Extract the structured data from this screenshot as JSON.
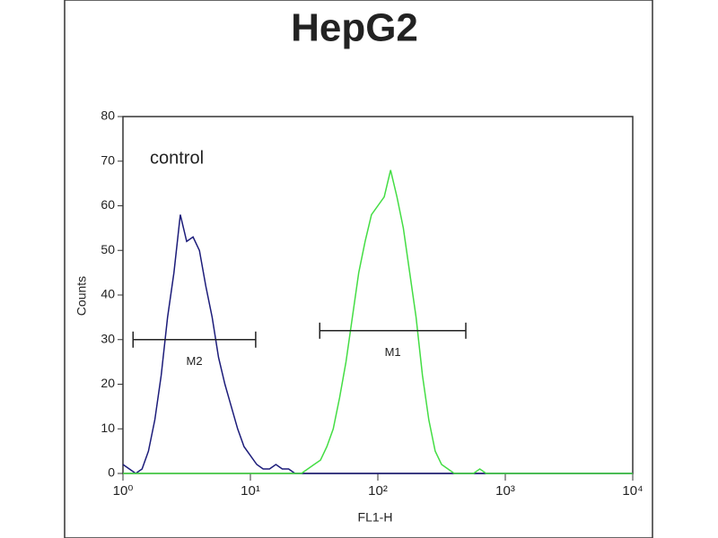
{
  "chart_data": {
    "type": "line",
    "title": "HepG2",
    "xlabel": "FL1-H",
    "ylabel": "Counts",
    "xscale": "log",
    "x": [
      1,
      1.122,
      1.259,
      1.413,
      1.585,
      1.778,
      1.995,
      2.239,
      2.512,
      2.818,
      3.162,
      3.548,
      3.981,
      4.467,
      5.012,
      5.623,
      6.31,
      7.079,
      7.943,
      8.913,
      10,
      11.22,
      12.59,
      14.13,
      15.85,
      17.78,
      19.95,
      22.39,
      25.12,
      28.18,
      31.62,
      35.48,
      39.81,
      44.67,
      50.12,
      56.23,
      63.1,
      70.79,
      79.43,
      89.13,
      100,
      112.2,
      125.9,
      141.3,
      158.5,
      177.8,
      199.5,
      223.9,
      251.2,
      281.8,
      316.2,
      354.8,
      398.1,
      446.7,
      501.2,
      562.3,
      631,
      707.9,
      794.3,
      891.3,
      1000,
      1122,
      1259,
      1413,
      1585,
      1778,
      1995,
      2239,
      2512,
      2818,
      3162,
      3548,
      3981,
      4467,
      5012,
      5623,
      6310,
      7079,
      7943,
      8913,
      10000
    ],
    "series": [
      {
        "name": "control",
        "color": "#1c1c7a",
        "values": [
          2,
          1,
          0,
          1,
          5,
          12,
          22,
          35,
          45,
          58,
          52,
          53,
          50,
          42,
          35,
          26,
          20,
          15,
          10,
          6,
          4,
          2,
          1,
          1,
          2,
          1,
          1,
          0,
          0,
          0,
          0,
          0,
          0,
          0,
          0,
          0,
          0,
          0,
          0,
          0,
          0,
          0,
          0,
          0,
          0,
          0,
          0,
          0,
          0,
          0,
          0,
          0,
          0,
          0,
          0,
          0,
          0,
          0,
          0,
          0,
          0,
          0,
          0,
          0,
          0,
          0,
          0,
          0,
          0,
          0,
          0,
          0,
          0,
          0,
          0,
          0,
          0,
          0,
          0,
          0,
          0
        ]
      },
      {
        "color": "#44dd44",
        "values": [
          0,
          0,
          0,
          0,
          0,
          0,
          0,
          0,
          0,
          0,
          0,
          0,
          0,
          0,
          0,
          0,
          0,
          0,
          0,
          0,
          0,
          0,
          0,
          0,
          0,
          0,
          0,
          0,
          0,
          1,
          2,
          3,
          6,
          10,
          17,
          25,
          35,
          45,
          52,
          58,
          60,
          62,
          68,
          62,
          55,
          45,
          35,
          22,
          12,
          5,
          2,
          1,
          0,
          0,
          0,
          0,
          1,
          0,
          0,
          0,
          0,
          0,
          0,
          0,
          0,
          0,
          0,
          0,
          0,
          0,
          0,
          0,
          0,
          0,
          0,
          0,
          0,
          0,
          0,
          0,
          0
        ]
      }
    ],
    "annotation": "control",
    "gates": [
      {
        "label": "M2",
        "range": [
          1.2,
          11
        ],
        "y": 30
      },
      {
        "label": "M1",
        "range": [
          35,
          490
        ],
        "y": 32
      }
    ],
    "xlim": [
      1,
      10000
    ],
    "xticks": [
      {
        "value": 1,
        "label": "10⁰"
      },
      {
        "value": 10,
        "label": "10¹"
      },
      {
        "value": 100,
        "label": "10²"
      },
      {
        "value": 1000,
        "label": "10³"
      },
      {
        "value": 10000,
        "label": "10⁴"
      }
    ],
    "ylim": [
      0,
      80
    ],
    "yticks": [
      0,
      10,
      20,
      30,
      40,
      50,
      60,
      70,
      80
    ]
  }
}
